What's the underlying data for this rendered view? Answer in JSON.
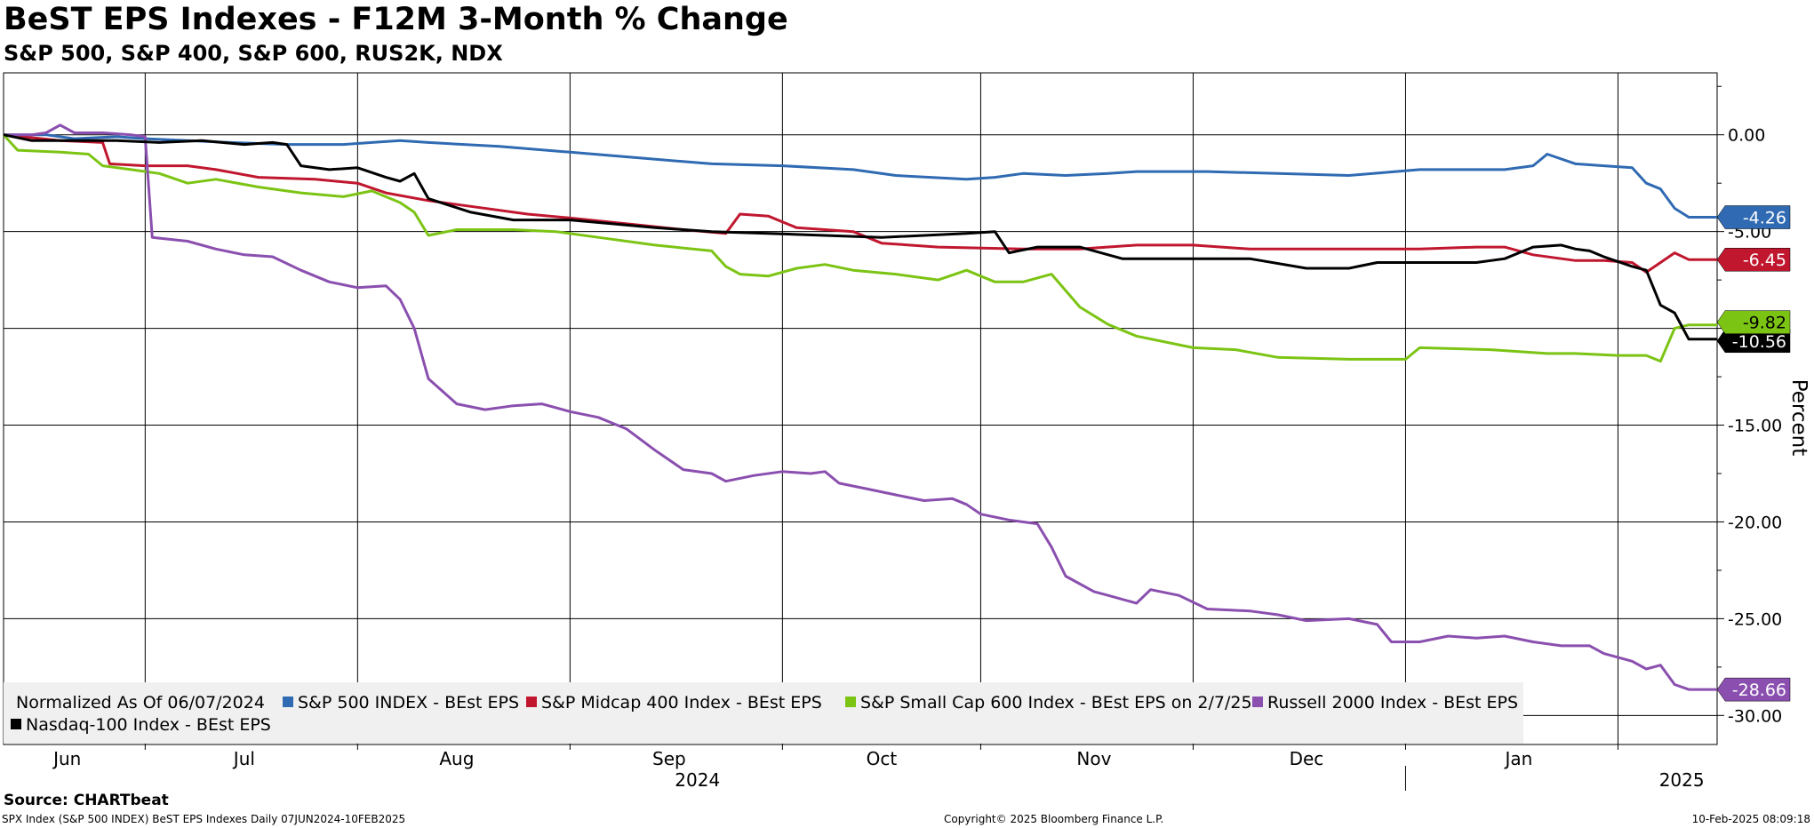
{
  "title": "BeST EPS Indexes - F12M 3-Month % Change",
  "subtitle": "S&P 500, S&P 400, S&P 600, RUS2K, NDX",
  "source": "Source: CHARTbeat",
  "footer": {
    "left": "SPX Index (S&P 500 INDEX) BeST EPS Indexes  Daily 07JUN2024-10FEB2025",
    "center": "Copyright© 2025 Bloomberg Finance L.P.",
    "right": "10-Feb-2025 08:09:18"
  },
  "chart_data": {
    "type": "line",
    "ylabel": "Percent",
    "ylim": [
      -31.5,
      3.2
    ],
    "grid": true,
    "y_ticks": [
      "0.00",
      "-5.00",
      "-10.00",
      "-15.00",
      "-20.00",
      "-25.00",
      "-30.00"
    ],
    "y_tick_values": [
      0,
      -5,
      -10,
      -15,
      -20,
      -25,
      -30
    ],
    "month_labels": [
      "Jun",
      "Jul",
      "Aug",
      "Sep",
      "Oct",
      "Nov",
      "Dec",
      "Jan"
    ],
    "month_label_positions": [
      4.5,
      17,
      32,
      47,
      62,
      77,
      92,
      107
    ],
    "month_boundaries": [
      10,
      25,
      40,
      55,
      69,
      84,
      99,
      114
    ],
    "year_labels": [
      {
        "label": "2024",
        "position": 49
      },
      {
        "label": "2025",
        "position": 118.5
      }
    ],
    "year_divider": 99,
    "x_range": [
      0,
      121
    ],
    "legend_note": "Normalized As Of 06/07/2024",
    "series": [
      {
        "name": "S&P 500 INDEX - BEst EPS",
        "color": "#2f6ab2",
        "last": "-4.26",
        "points": [
          [
            0,
            0
          ],
          [
            3,
            0
          ],
          [
            5,
            -0.2
          ],
          [
            8,
            -0.1
          ],
          [
            10,
            -0.2
          ],
          [
            13,
            -0.3
          ],
          [
            16,
            -0.4
          ],
          [
            20,
            -0.5
          ],
          [
            24,
            -0.5
          ],
          [
            26,
            -0.4
          ],
          [
            28,
            -0.3
          ],
          [
            30,
            -0.4
          ],
          [
            35,
            -0.6
          ],
          [
            40,
            -0.9
          ],
          [
            45,
            -1.2
          ],
          [
            50,
            -1.5
          ],
          [
            55,
            -1.6
          ],
          [
            60,
            -1.8
          ],
          [
            63,
            -2.1
          ],
          [
            68,
            -2.3
          ],
          [
            70,
            -2.2
          ],
          [
            72,
            -2.0
          ],
          [
            75,
            -2.1
          ],
          [
            78,
            -2.0
          ],
          [
            80,
            -1.9
          ],
          [
            85,
            -1.9
          ],
          [
            90,
            -2.0
          ],
          [
            95,
            -2.1
          ],
          [
            100,
            -1.8
          ],
          [
            104,
            -1.8
          ],
          [
            106,
            -1.8
          ],
          [
            108,
            -1.6
          ],
          [
            109,
            -1.0
          ],
          [
            111,
            -1.5
          ],
          [
            113,
            -1.6
          ],
          [
            115,
            -1.7
          ],
          [
            116,
            -2.5
          ],
          [
            117,
            -2.8
          ],
          [
            118,
            -3.8
          ],
          [
            119,
            -4.26
          ],
          [
            121,
            -4.26
          ]
        ]
      },
      {
        "name": "S&P Midcap 400 Index - BEst EPS",
        "color": "#c0172f",
        "last": "-6.45",
        "points": [
          [
            0,
            0
          ],
          [
            4,
            -0.3
          ],
          [
            7,
            -0.4
          ],
          [
            7.5,
            -1.5
          ],
          [
            10,
            -1.6
          ],
          [
            13,
            -1.6
          ],
          [
            15,
            -1.8
          ],
          [
            18,
            -2.2
          ],
          [
            22,
            -2.3
          ],
          [
            25,
            -2.5
          ],
          [
            27,
            -3.0
          ],
          [
            30,
            -3.4
          ],
          [
            33,
            -3.7
          ],
          [
            37,
            -4.1
          ],
          [
            40,
            -4.3
          ],
          [
            44,
            -4.6
          ],
          [
            48,
            -4.9
          ],
          [
            51,
            -5.1
          ],
          [
            52,
            -4.1
          ],
          [
            54,
            -4.2
          ],
          [
            56,
            -4.8
          ],
          [
            60,
            -5.0
          ],
          [
            62,
            -5.6
          ],
          [
            66,
            -5.8
          ],
          [
            72,
            -5.9
          ],
          [
            76,
            -5.9
          ],
          [
            80,
            -5.7
          ],
          [
            84,
            -5.7
          ],
          [
            88,
            -5.9
          ],
          [
            92,
            -5.9
          ],
          [
            96,
            -5.9
          ],
          [
            100,
            -5.9
          ],
          [
            104,
            -5.8
          ],
          [
            106,
            -5.8
          ],
          [
            108,
            -6.2
          ],
          [
            111,
            -6.5
          ],
          [
            113,
            -6.5
          ],
          [
            115,
            -6.6
          ],
          [
            116,
            -7.1
          ],
          [
            117,
            -6.6
          ],
          [
            118,
            -6.1
          ],
          [
            119,
            -6.45
          ],
          [
            121,
            -6.45
          ]
        ]
      },
      {
        "name": "S&P Small Cap 600 Index - BEst EPS on 2/7/25",
        "color": "#7cc414",
        "last": "-9.82",
        "points": [
          [
            0,
            0
          ],
          [
            1,
            -0.8
          ],
          [
            4,
            -0.9
          ],
          [
            6,
            -1.0
          ],
          [
            7,
            -1.6
          ],
          [
            9,
            -1.8
          ],
          [
            11,
            -2.0
          ],
          [
            13,
            -2.5
          ],
          [
            15,
            -2.3
          ],
          [
            18,
            -2.7
          ],
          [
            21,
            -3.0
          ],
          [
            24,
            -3.2
          ],
          [
            26,
            -2.9
          ],
          [
            28,
            -3.5
          ],
          [
            29,
            -4.0
          ],
          [
            30,
            -5.2
          ],
          [
            32,
            -4.9
          ],
          [
            36,
            -4.9
          ],
          [
            39,
            -5.0
          ],
          [
            42,
            -5.3
          ],
          [
            46,
            -5.7
          ],
          [
            50,
            -6.0
          ],
          [
            51,
            -6.8
          ],
          [
            52,
            -7.2
          ],
          [
            54,
            -7.3
          ],
          [
            56,
            -6.9
          ],
          [
            58,
            -6.7
          ],
          [
            60,
            -7.0
          ],
          [
            63,
            -7.2
          ],
          [
            66,
            -7.5
          ],
          [
            68,
            -7.0
          ],
          [
            70,
            -7.6
          ],
          [
            72,
            -7.6
          ],
          [
            74,
            -7.2
          ],
          [
            76,
            -8.9
          ],
          [
            78,
            -9.8
          ],
          [
            80,
            -10.4
          ],
          [
            84,
            -11.0
          ],
          [
            87,
            -11.1
          ],
          [
            90,
            -11.5
          ],
          [
            95,
            -11.6
          ],
          [
            99,
            -11.6
          ],
          [
            100,
            -11.0
          ],
          [
            105,
            -11.1
          ],
          [
            107,
            -11.2
          ],
          [
            109,
            -11.3
          ],
          [
            111,
            -11.3
          ],
          [
            114,
            -11.4
          ],
          [
            116,
            -11.4
          ],
          [
            117,
            -11.7
          ],
          [
            118,
            -10.0
          ],
          [
            119,
            -9.82
          ],
          [
            121,
            -9.82
          ]
        ]
      },
      {
        "name": "Russell 2000 Index - BEst EPS",
        "color": "#8a4faf",
        "last": "-28.66",
        "points": [
          [
            0,
            0
          ],
          [
            2,
            0
          ],
          [
            3,
            0.1
          ],
          [
            4,
            0.5
          ],
          [
            5,
            0.1
          ],
          [
            7,
            0.1
          ],
          [
            9,
            0
          ],
          [
            10,
            -0.1
          ],
          [
            10.5,
            -5.3
          ],
          [
            13,
            -5.5
          ],
          [
            15,
            -5.9
          ],
          [
            17,
            -6.2
          ],
          [
            19,
            -6.3
          ],
          [
            21,
            -7.0
          ],
          [
            23,
            -7.6
          ],
          [
            25,
            -7.9
          ],
          [
            27,
            -7.8
          ],
          [
            28,
            -8.5
          ],
          [
            29,
            -10.0
          ],
          [
            30,
            -12.6
          ],
          [
            32,
            -13.9
          ],
          [
            34,
            -14.2
          ],
          [
            36,
            -14.0
          ],
          [
            38,
            -13.9
          ],
          [
            40,
            -14.3
          ],
          [
            42,
            -14.6
          ],
          [
            44,
            -15.2
          ],
          [
            46,
            -16.3
          ],
          [
            48,
            -17.3
          ],
          [
            50,
            -17.5
          ],
          [
            51,
            -17.9
          ],
          [
            53,
            -17.6
          ],
          [
            55,
            -17.4
          ],
          [
            57,
            -17.5
          ],
          [
            58,
            -17.4
          ],
          [
            59,
            -18.0
          ],
          [
            61,
            -18.3
          ],
          [
            63,
            -18.6
          ],
          [
            65,
            -18.9
          ],
          [
            67,
            -18.8
          ],
          [
            68,
            -19.1
          ],
          [
            69,
            -19.6
          ],
          [
            71,
            -19.9
          ],
          [
            73,
            -20.1
          ],
          [
            74,
            -21.3
          ],
          [
            75,
            -22.8
          ],
          [
            77,
            -23.6
          ],
          [
            78,
            -23.8
          ],
          [
            80,
            -24.2
          ],
          [
            81,
            -23.5
          ],
          [
            83,
            -23.8
          ],
          [
            85,
            -24.5
          ],
          [
            88,
            -24.6
          ],
          [
            90,
            -24.8
          ],
          [
            92,
            -25.1
          ],
          [
            95,
            -25.0
          ],
          [
            97,
            -25.3
          ],
          [
            98,
            -26.2
          ],
          [
            100,
            -26.2
          ],
          [
            102,
            -25.9
          ],
          [
            104,
            -26.0
          ],
          [
            106,
            -25.9
          ],
          [
            108,
            -26.2
          ],
          [
            110,
            -26.4
          ],
          [
            112,
            -26.4
          ],
          [
            113,
            -26.8
          ],
          [
            115,
            -27.2
          ],
          [
            116,
            -27.6
          ],
          [
            117,
            -27.4
          ],
          [
            118,
            -28.4
          ],
          [
            119,
            -28.66
          ],
          [
            121,
            -28.66
          ]
        ]
      },
      {
        "name": "Nasdaq-100 Index - BEst EPS",
        "color": "#000000",
        "last": "-10.56",
        "points": [
          [
            0,
            0
          ],
          [
            2,
            -0.3
          ],
          [
            5,
            -0.3
          ],
          [
            8,
            -0.3
          ],
          [
            11,
            -0.4
          ],
          [
            14,
            -0.3
          ],
          [
            17,
            -0.5
          ],
          [
            19,
            -0.4
          ],
          [
            20,
            -0.5
          ],
          [
            21,
            -1.6
          ],
          [
            23,
            -1.8
          ],
          [
            25,
            -1.7
          ],
          [
            27,
            -2.2
          ],
          [
            28,
            -2.4
          ],
          [
            29,
            -2.0
          ],
          [
            30,
            -3.3
          ],
          [
            33,
            -4.0
          ],
          [
            36,
            -4.4
          ],
          [
            40,
            -4.4
          ],
          [
            43,
            -4.6
          ],
          [
            46,
            -4.8
          ],
          [
            50,
            -5.0
          ],
          [
            54,
            -5.1
          ],
          [
            58,
            -5.2
          ],
          [
            62,
            -5.3
          ],
          [
            68,
            -5.1
          ],
          [
            70,
            -5.0
          ],
          [
            71,
            -6.1
          ],
          [
            73,
            -5.8
          ],
          [
            76,
            -5.8
          ],
          [
            79,
            -6.4
          ],
          [
            82,
            -6.4
          ],
          [
            88,
            -6.4
          ],
          [
            92,
            -6.9
          ],
          [
            95,
            -6.9
          ],
          [
            97,
            -6.6
          ],
          [
            100,
            -6.6
          ],
          [
            104,
            -6.6
          ],
          [
            106,
            -6.4
          ],
          [
            108,
            -5.8
          ],
          [
            110,
            -5.7
          ],
          [
            111,
            -5.9
          ],
          [
            112,
            -6.0
          ],
          [
            113,
            -6.3
          ],
          [
            115,
            -6.8
          ],
          [
            116,
            -7.0
          ],
          [
            117,
            -8.8
          ],
          [
            118,
            -9.2
          ],
          [
            119,
            -10.56
          ],
          [
            121,
            -10.56
          ]
        ]
      }
    ]
  }
}
